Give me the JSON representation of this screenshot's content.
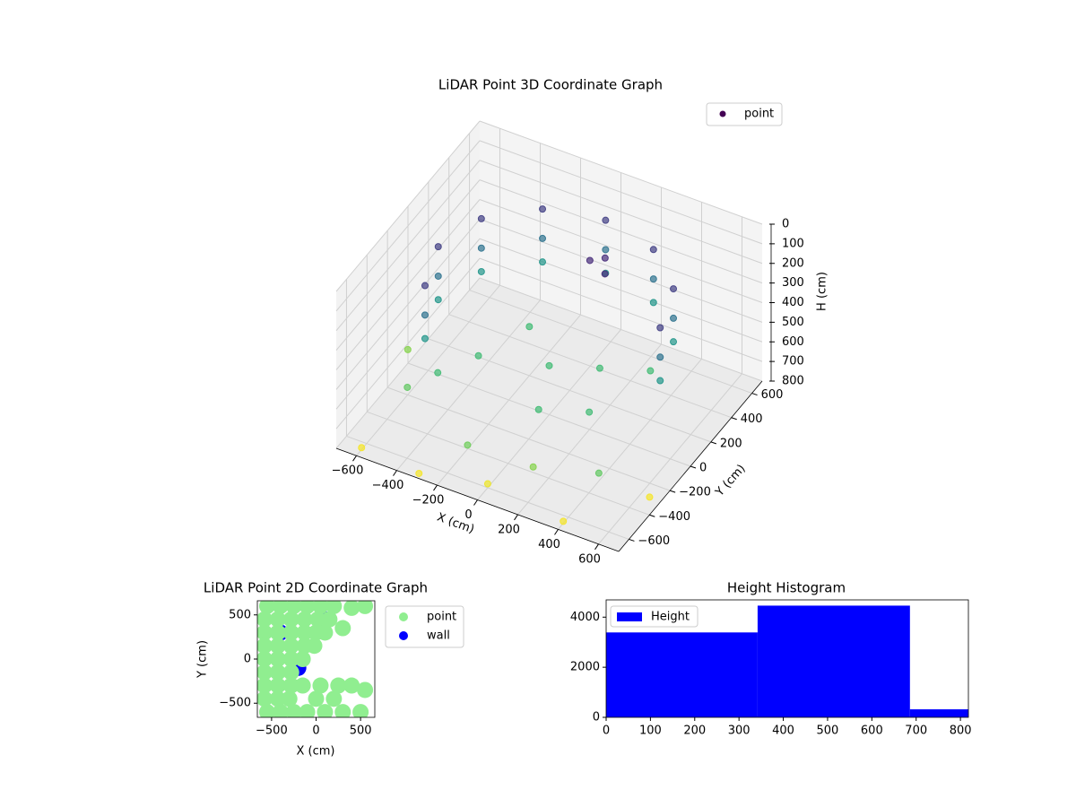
{
  "chart_data": [
    {
      "type": "scatter3d",
      "title": "LiDAR Point 3D Coordinate Graph",
      "xlabel": "X (cm)",
      "ylabel": "Y (cm)",
      "zlabel": "H (cm)",
      "legend": "upper right",
      "z_inverted": true,
      "grid": true,
      "series": [
        {
          "name": "point",
          "colormap": "viridis",
          "x": [
            550,
            476,
            275,
            0,
            -275,
            -476,
            -550,
            -476,
            550,
            476,
            275,
            0,
            -275,
            -476,
            -550,
            -476,
            550,
            476,
            275,
            0,
            -275,
            -476,
            -550,
            -476,
            -300,
            0,
            200,
            -200,
            300,
            100,
            -400,
            400,
            100,
            150,
            200,
            -650,
            -500,
            200,
            500,
            -100,
            -600,
            0,
            400,
            650,
            -300
          ],
          "y": [
            0,
            275,
            476,
            550,
            476,
            275,
            0,
            -275,
            0,
            275,
            476,
            550,
            476,
            275,
            0,
            -275,
            0,
            275,
            476,
            550,
            476,
            275,
            0,
            -275,
            -100,
            0,
            100,
            200,
            -200,
            -300,
            -300,
            200,
            200,
            250,
            150,
            -100,
            -400,
            -550,
            -500,
            -600,
            -650,
            -600,
            -650,
            -300,
            -680
          ],
          "values": [
            150,
            150,
            150,
            150,
            150,
            150,
            150,
            150,
            300,
            300,
            300,
            300,
            300,
            300,
            300,
            300,
            420,
            420,
            420,
            420,
            420,
            420,
            420,
            420,
            550,
            550,
            550,
            550,
            550,
            550,
            550,
            550,
            100,
            100,
            100,
            650,
            600,
            650,
            600,
            620,
            790,
            780,
            790,
            790,
            790
          ]
        }
      ],
      "xlim": [
        -700,
        700
      ],
      "ylim": [
        -700,
        700
      ],
      "zlim": [
        0,
        800
      ],
      "xticks": [
        {
          "value": -600,
          "label": "−600"
        },
        {
          "value": -400,
          "label": "−400"
        },
        {
          "value": -200,
          "label": "−200"
        },
        0,
        200,
        400,
        600
      ],
      "yticks": [
        {
          "value": -600,
          "label": "−600"
        },
        {
          "value": -400,
          "label": "−400"
        },
        {
          "value": -200,
          "label": "−200"
        },
        0,
        200,
        400,
        600
      ],
      "zticks": [
        0,
        100,
        200,
        300,
        400,
        500,
        600,
        700,
        800
      ]
    },
    {
      "type": "scatter",
      "title": "LiDAR Point 2D Coordinate Graph",
      "xlabel": "X (cm)",
      "ylabel": "Y (cm)",
      "legend": "outside right",
      "series": [
        {
          "name": "wall",
          "color": "#0000ff",
          "x": [
            -400,
            -200,
            100
          ],
          "values": [
            300,
            -100,
            450
          ]
        },
        {
          "name": "point",
          "color": "#90ee90",
          "x": [
            -550,
            -400,
            -250,
            -100,
            50,
            200,
            400,
            550,
            -580,
            -430,
            -280,
            -130,
            20,
            150,
            -580,
            -430,
            -280,
            -130,
            0,
            100,
            300,
            -580,
            -430,
            -280,
            -130,
            -20,
            -580,
            -430,
            -280,
            -150,
            -580,
            -430,
            -280,
            -580,
            -430,
            -280,
            -150,
            50,
            250,
            400,
            550,
            -580,
            -430,
            -300,
            0,
            200,
            -550,
            -400,
            -250,
            -100,
            100,
            300,
            500
          ],
          "values": [
            600,
            600,
            600,
            600,
            600,
            600,
            580,
            600,
            450,
            450,
            450,
            450,
            450,
            450,
            300,
            300,
            300,
            300,
            300,
            300,
            350,
            150,
            150,
            150,
            150,
            150,
            0,
            0,
            0,
            0,
            -150,
            -150,
            -150,
            -300,
            -300,
            -300,
            -300,
            -300,
            -300,
            -300,
            -350,
            -450,
            -450,
            -450,
            -450,
            -450,
            -600,
            -600,
            -600,
            -600,
            -600,
            -600,
            -600
          ]
        }
      ],
      "xlim": [
        -660,
        660
      ],
      "ylim": [
        -660,
        660
      ],
      "xticks": [
        {
          "value": -500,
          "label": "−500"
        },
        0,
        500
      ],
      "yticks": [
        {
          "value": -500,
          "label": "−500"
        },
        0,
        500
      ]
    },
    {
      "type": "histogram",
      "title": "Height Histogram",
      "legend": "upper left",
      "bins": [
        0,
        342,
        686,
        818
      ],
      "series": [
        {
          "name": "Height",
          "color": "#0000ff",
          "values": [
            3390,
            4460,
            320
          ]
        }
      ],
      "xlim": [
        0,
        818
      ],
      "ylim": [
        0,
        4690
      ],
      "xticks": [
        0,
        100,
        200,
        300,
        400,
        500,
        600,
        700,
        800
      ],
      "yticks": [
        0,
        2000,
        4000
      ]
    }
  ]
}
